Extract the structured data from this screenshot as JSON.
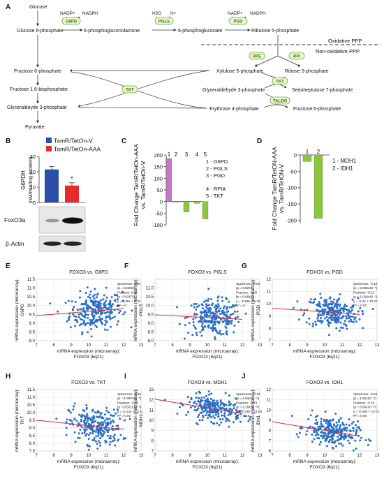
{
  "panel_letters": [
    "A",
    "B",
    "C",
    "D",
    "E",
    "F",
    "G",
    "H",
    "I",
    "J"
  ],
  "panelA": {
    "metabolites": {
      "glucose": "Glucose",
      "g6p": "Glucose 6-phosphate",
      "pgl": "6-phosphogluconolactone",
      "pg": "6-phosphogluconate",
      "r5p_top": "Ribulose 5-phosphate",
      "f6p": "Fructose 6-phosphate",
      "f16bp": "Fructose 1,6-bisphosphate",
      "g3p_left": "Glyceraldeyde 3-phosphate",
      "pyr": "Pyruvate",
      "xu5p": "Xylulose 5-phosphate",
      "ribose5p": "Ribose 5-phosphate",
      "g3p_right": "Glyceraldehyde 3-phosphate",
      "s7p": "Sedoheptulose 7-phosphate",
      "e4p": "Erythrose 4-phosphate",
      "f6p_right": "Fructose 6-phosphate"
    },
    "cofactors": {
      "nadp1": "NADP+",
      "nadph1": "NADPH",
      "h2o": "H2O",
      "hplus": "H+",
      "nadp2": "NADP+",
      "nadph2": "NADPH"
    },
    "enzymes": {
      "g6pd": "G6PD",
      "pgls": "PGLS",
      "pgd": "PGD",
      "rpe": "RPE",
      "rpi": "RPI",
      "tkt_left": "TKT",
      "tkt_right": "TKT",
      "taldo": "TALDO"
    },
    "oxidative_label": "Oxidative PPP",
    "nonoxidative_label": "Non-oxidative PPP",
    "oxidative_color": "#e53935",
    "nonoxidative_color": "#3f6fd8"
  },
  "panelB": {
    "legend": [
      "TamR/TetOn-V",
      "TamR/TetOn-AAA"
    ],
    "colors": [
      "#2b4fa6",
      "#e52b2b"
    ],
    "ylabel_line1": "G6PDH",
    "ylabel_line2": "(nM/min/mg protein)",
    "significance": "*",
    "blots": [
      "FoxO3a",
      "β-Actin"
    ]
  },
  "panelC": {
    "ylabel_line1": "Fold Change TamR/TetOn-AAA",
    "ylabel_line2": "vs. TamR/TetOn-V",
    "legend": [
      "1 - G6PD",
      "2 - PGLS",
      "3 - PGD",
      "4 - RPIA",
      "5 - TKT"
    ]
  },
  "panelD": {
    "ylabel_line1": "Fold Change TamR/TetON-AAA",
    "ylabel_line2": "vs. TamR/TetON-V",
    "legend": [
      "1 - MDH1",
      "2 - IDH1"
    ]
  },
  "scatter_common": {
    "xlabel_line1": "mRNA expression (microarray):",
    "xlabel_line2": "FOXO3 (6q21)",
    "ylabel_line1": "mRNA expression (microarray):"
  },
  "scatters": [
    {
      "letter": "E",
      "title": "FOXO3 vs. G6PD",
      "gene": "G6PD",
      "stats": [
        "Spearman: 0.06",
        "(p = 0.0232)",
        "Pearson: 0.06",
        "(p = 0.0373)",
        "y = 0.08x + 8.19",
        "R² = 0"
      ]
    },
    {
      "letter": "F",
      "title": "FOXO3 vs. PGLS",
      "gene": "PGLS",
      "stats": [
        "Spearman: -0.06",
        "(p = 0.0274)",
        "Pearson: -0.05",
        "(p = 0.0618)",
        "y = -0.05x + 9.76",
        "R² = 0"
      ]
    },
    {
      "letter": "G",
      "title": "FOXO3 vs. PGD",
      "gene": "PGD",
      "stats": [
        "Spearman: -0.12",
        "(p = 5.936x10⁻⁶)",
        "Pearson: -0.12",
        "(p = 1.018x10⁻⁵)",
        "y = -0.1x + 10.27",
        "R² = 0.02"
      ]
    },
    {
      "letter": "H",
      "title": "FOXO3 vs. TKT",
      "gene": "TKT",
      "stats": [
        "Spearman: -0.12",
        "(p = 1.583x10⁻⁵)",
        "Pearson: -0.12",
        "(p = 9.551x10⁻⁶)",
        "y = -0.12x + 10.31",
        "R² = 0.02"
      ]
    },
    {
      "letter": "I",
      "title": "FOXO3 vs. MDH1",
      "gene": "MDH1",
      "stats": [
        "Spearman: -0.43",
        "(p = 1.94x10⁻⁶²)",
        "Pearson: -0.43",
        "(p = 2.29x10⁻⁶²)",
        "y = -0.28x + 14.03",
        "R² = 0.19"
      ]
    },
    {
      "letter": "J",
      "title": "FOXO3 vs. IDH1",
      "gene": "IDH1",
      "stats": [
        "Spearman: -0.23",
        "(p = 1.91x10⁻¹⁷)",
        "Pearson: -0.24",
        "(p = 6.95x10⁻¹⁹)",
        "y = -0.28x + 10.73",
        "R² = 0.06"
      ]
    }
  ],
  "chart_data": [
    {
      "id": "B",
      "type": "bar",
      "categories": [
        "TamR/TetOn-V",
        "TamR/TetOn-AAA"
      ],
      "values": [
        21.5,
        11
      ],
      "errors": [
        2,
        1.8
      ],
      "ylabel": "G6PDH (nM/min/mg protein)",
      "ylim": [
        0,
        30
      ],
      "yticks": [
        "0",
        "10",
        "20",
        "30"
      ]
    },
    {
      "id": "C",
      "type": "bar",
      "categories": [
        "1",
        "2",
        "3",
        "4",
        "5"
      ],
      "values": [
        185,
        -3,
        -45,
        -8,
        -75
      ],
      "colors": [
        "#c17ac4",
        "#8cc63f",
        "#8cc63f",
        "#8cc63f",
        "#8cc63f"
      ],
      "ylim": [
        -100,
        200
      ],
      "yticks": [
        "-100",
        "-50",
        "0",
        "50",
        "100",
        "150",
        "200"
      ]
    },
    {
      "id": "D",
      "type": "bar",
      "categories": [
        "1",
        "2"
      ],
      "values": [
        -20,
        -195
      ],
      "colors": [
        "#8cc63f",
        "#8cc63f"
      ],
      "ylim": [
        -210,
        0
      ],
      "yticks": [
        "-200",
        "-150",
        "-100",
        "-50",
        "0"
      ]
    },
    {
      "type": "scatter",
      "id": "scatter-axes",
      "xlim": [
        7,
        13
      ],
      "xticks": [
        "7",
        "8",
        "9",
        "10",
        "11",
        "12",
        "13"
      ],
      "series_color": "#2a6fc7",
      "fit_color": "#d32f2f"
    }
  ],
  "scatter_axes": {
    "E": {
      "ylim": [
        8,
        11.5
      ],
      "yticks": [
        "8.0",
        "8.5",
        "9.0",
        "9.5",
        "10.0",
        "10.5",
        "11.0",
        "11.5"
      ],
      "cx": 10.4,
      "cy": 9.7,
      "sx": 0.75,
      "sy": 0.55,
      "slope": 0.08,
      "icpt": 8.19
    },
    "F": {
      "ylim": [
        8,
        11.5
      ],
      "yticks": [
        "8.0",
        "8.5",
        "9.0",
        "9.5",
        "10.0",
        "10.5",
        "11.0"
      ],
      "cx": 10.4,
      "cy": 9.3,
      "sx": 0.75,
      "sy": 0.5,
      "slope": -0.05,
      "icpt": 9.76
    },
    "G": {
      "ylim": [
        7,
        12
      ],
      "yticks": [
        "7",
        "8",
        "9",
        "10",
        "11",
        "12"
      ],
      "cx": 10.4,
      "cy": 9.3,
      "sx": 0.75,
      "sy": 0.65,
      "slope": -0.1,
      "icpt": 10.27
    },
    "H": {
      "ylim": [
        7.5,
        11.5
      ],
      "yticks": [
        "7.5",
        "8.0",
        "8.5",
        "9.0",
        "9.5",
        "10.0",
        "10.5",
        "11.0",
        "11.5"
      ],
      "cx": 10.4,
      "cy": 9.1,
      "sx": 0.75,
      "sy": 0.6,
      "slope": -0.12,
      "icpt": 10.31
    },
    "I": {
      "ylim": [
        7,
        13
      ],
      "yticks": [
        "7",
        "8",
        "9",
        "10",
        "11",
        "12",
        "13"
      ],
      "cx": 10.4,
      "cy": 11.1,
      "sx": 0.75,
      "sy": 0.6,
      "slope": -0.28,
      "icpt": 14.03
    },
    "J": {
      "ylim": [
        6,
        12
      ],
      "yticks": [
        "6",
        "7",
        "8",
        "9",
        "10",
        "11",
        "12"
      ],
      "cx": 10.4,
      "cy": 7.9,
      "sx": 0.75,
      "sy": 0.7,
      "slope": -0.28,
      "icpt": 10.73
    }
  }
}
